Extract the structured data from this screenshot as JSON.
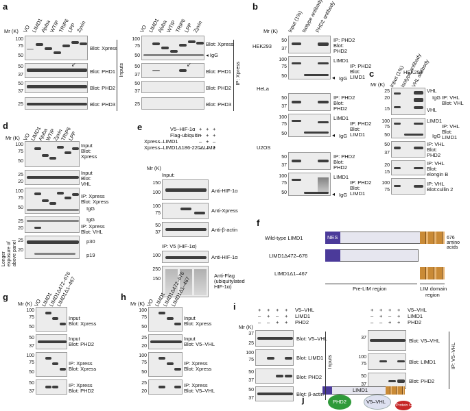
{
  "panels": {
    "a": "a",
    "b": "b",
    "c": "c",
    "d": "d",
    "e": "e",
    "f": "f",
    "g": "g",
    "h": "h",
    "i": "i",
    "j": "j"
  },
  "mr": "Mr (K)",
  "a": {
    "left_lanes": [
      "VO",
      "LIMD1",
      "Ajuba",
      "WTIP",
      "TRIP6",
      "LPP",
      "Zyxin"
    ],
    "right_lanes": [
      "VO",
      "LIMD1",
      "Ajuba",
      "WTIP",
      "TRIP6",
      "LPP",
      "Zyxin"
    ],
    "rows": [
      "Blot: Xpress",
      "Blot: PHD1",
      "Blot: PHD2",
      "Blot: PHD3"
    ],
    "inputs": "Inputs",
    "ip": "IP: Xpress",
    "igg": "IgG",
    "ticks_r1": [
      "100",
      "75",
      "50"
    ],
    "ticks_r2": [
      "50",
      "37"
    ],
    "ticks_r3": [
      "50",
      "37"
    ],
    "ticks_r4": [
      "25"
    ]
  },
  "b": {
    "lanes": [
      "Input (1%)",
      "Isotype antibody",
      "PHD2 antibody"
    ],
    "cells": [
      "HEK293",
      "HeLa",
      "U2OS"
    ],
    "r1": [
      "IP: PHD2",
      "Blot:",
      "PHD2"
    ],
    "r2": [
      "IP: PHD2",
      "Blot:",
      "LIMD1"
    ],
    "limd1": "LIMD1",
    "igg": "IgG",
    "ticks_a": [
      "50",
      "37"
    ],
    "ticks_b": [
      "100",
      "75",
      "50"
    ]
  },
  "c": {
    "cell": "HEK293",
    "lanes": [
      "Input (1%)",
      "Isotype antibody",
      "VHL antibody"
    ],
    "r1": [
      "IP: VHL",
      "Blot: VHL"
    ],
    "r2": [
      "IP: VHL",
      "Blot:",
      "LIMD1"
    ],
    "r3": [
      "IP: VHL",
      "Blot:",
      "PHD2"
    ],
    "r4": [
      "IP: VHL",
      "Blot:",
      "elongin B"
    ],
    "r5": [
      "IP: VHL",
      "Blot:cullin 2"
    ],
    "vhl": "VHL",
    "limd1": "LIMD1",
    "igg": "IgG",
    "ticks1": [
      "25",
      "20",
      "15"
    ],
    "ticks2": [
      "100",
      "75",
      "50"
    ],
    "ticks3": [
      "50",
      "37"
    ],
    "ticks4": [
      "20",
      "15"
    ],
    "ticks5": [
      "100",
      "75"
    ]
  },
  "d": {
    "lanes": [
      "VO",
      "LIMD1",
      "Ajuba",
      "WTIP",
      "Zyxin",
      "TRIP6",
      "LPP"
    ],
    "r1": [
      "Input",
      "Blot:",
      "Xpress"
    ],
    "r2": [
      "Input",
      "Blot:",
      "VHL"
    ],
    "r3": [
      "IP: Xpress",
      "Blot: Xpress"
    ],
    "r4": [
      "IP: Xpress",
      "Blot: VHL"
    ],
    "p30": "p30",
    "p19": "p19",
    "igg": "IgG",
    "longer": "Longer exposure of above panel",
    "ticks1": [
      "100",
      "75",
      "50"
    ],
    "ticks2": [
      "25",
      "20"
    ],
    "ticks3": [
      "100",
      "75",
      "50"
    ],
    "ticks4": [
      "25",
      "20"
    ],
    "ticks5": [
      "25",
      "20"
    ]
  },
  "e": {
    "conds": [
      "V5–HIF-1α",
      "Flag-ubiquitin",
      "Xpress–LIMD1",
      "Xpress–LIMD1Δ186-220ΔLIM2"
    ],
    "signs": [
      [
        "+",
        "+",
        "+"
      ],
      [
        "+",
        "+",
        "+"
      ],
      [
        "–",
        "+",
        "–"
      ],
      [
        "–",
        "–",
        "+"
      ]
    ],
    "input": "Input:",
    "ip": "IP: V5 (HIF-1α)",
    "r1": "Anti-HIF-1α",
    "r2": "Anti-Xpress",
    "r3": "Anti-β-actin",
    "r4": "Anti-HIF-1α",
    "r5": [
      "Anti-Flag",
      "(ubiquitylated",
      "HIF-1α)"
    ],
    "ticks1": [
      "150",
      "100"
    ],
    "ticks2": [
      "100",
      "75"
    ],
    "ticks3": [
      "50",
      "37"
    ],
    "ticks4": [
      "100"
    ],
    "ticks5": [
      "250",
      "150"
    ]
  },
  "f": {
    "wt": "Wild-type LIMD1",
    "d1": "LIMD1Δ472–676",
    "d2": "LIMD1Δ1–467",
    "nes": "NES",
    "aa": "676 amino acids",
    "prelim": "Pre-LIM region",
    "lim": [
      "LIM domain",
      "region"
    ]
  },
  "g": {
    "lanes": [
      "VO",
      "LIMD1",
      "LIMD1Δ472–676",
      "LIMD1Δ1–467"
    ],
    "r1": [
      "Input",
      "Blot: Xpress"
    ],
    "r2": [
      "Input",
      "Blot: PHD2"
    ],
    "r3": [
      "IP: Xpress",
      "Blot: Xpress"
    ],
    "r4": [
      "IP: Xpress",
      "Blot: PHD2"
    ],
    "ticks1": [
      "100",
      "75",
      "50"
    ],
    "ticks2": [
      "50",
      "37"
    ],
    "ticks3": [
      "100",
      "75",
      "50"
    ],
    "ticks4": [
      "50",
      "37"
    ]
  },
  "h": {
    "lanes": [
      "VO",
      "LIMD1",
      "LIMD1Δ472–676",
      "LIMD1Δ1–467"
    ],
    "r1": [
      "Input",
      "Blot: Xpress"
    ],
    "r2": [
      "Input",
      "Blot: V5–VHL"
    ],
    "r3": [
      "IP: Xpress",
      "Blot: Xpress"
    ],
    "r4": [
      "IP: Xpress",
      "Blot: V5–VHL"
    ],
    "ticks1": [
      "100",
      "75",
      "50"
    ],
    "ticks2": [
      "25",
      "20"
    ],
    "ticks3": [
      "100",
      "75",
      "50"
    ],
    "ticks4": [
      "25",
      "20"
    ]
  },
  "i": {
    "conds": [
      "V5–VHL",
      "LIMD1",
      "PHD2"
    ],
    "signs": [
      [
        "+",
        "+",
        "+",
        "+"
      ],
      [
        "–",
        "+",
        "–",
        "+"
      ],
      [
        "–",
        "–",
        "+",
        "+"
      ]
    ],
    "rows_l": [
      "Blot: V5–VHL",
      "Blot: LIMD1",
      "Blot: PHD2",
      "Blot: β-actin"
    ],
    "rows_r": [
      "Blot: V5–VHL",
      "Blot: LIMD1",
      "Blot: PHD2"
    ],
    "inputs": "Inputs",
    "ip": "IP: V5–VHL",
    "ticks1": [
      "37",
      "25"
    ],
    "ticks2": [
      "100",
      "75"
    ],
    "ticks3": [
      "50",
      "37"
    ],
    "ticks4": [
      "50",
      "37"
    ],
    "ticks_r1": [
      "37"
    ],
    "ticks_r2": [
      "100",
      "75"
    ],
    "ticks_r3": [
      "50",
      "37"
    ]
  },
  "j": {
    "limd1": "LIMD1",
    "phd2": "PHD2",
    "vhl": "V5–VHL",
    "protein": "Protein G"
  }
}
